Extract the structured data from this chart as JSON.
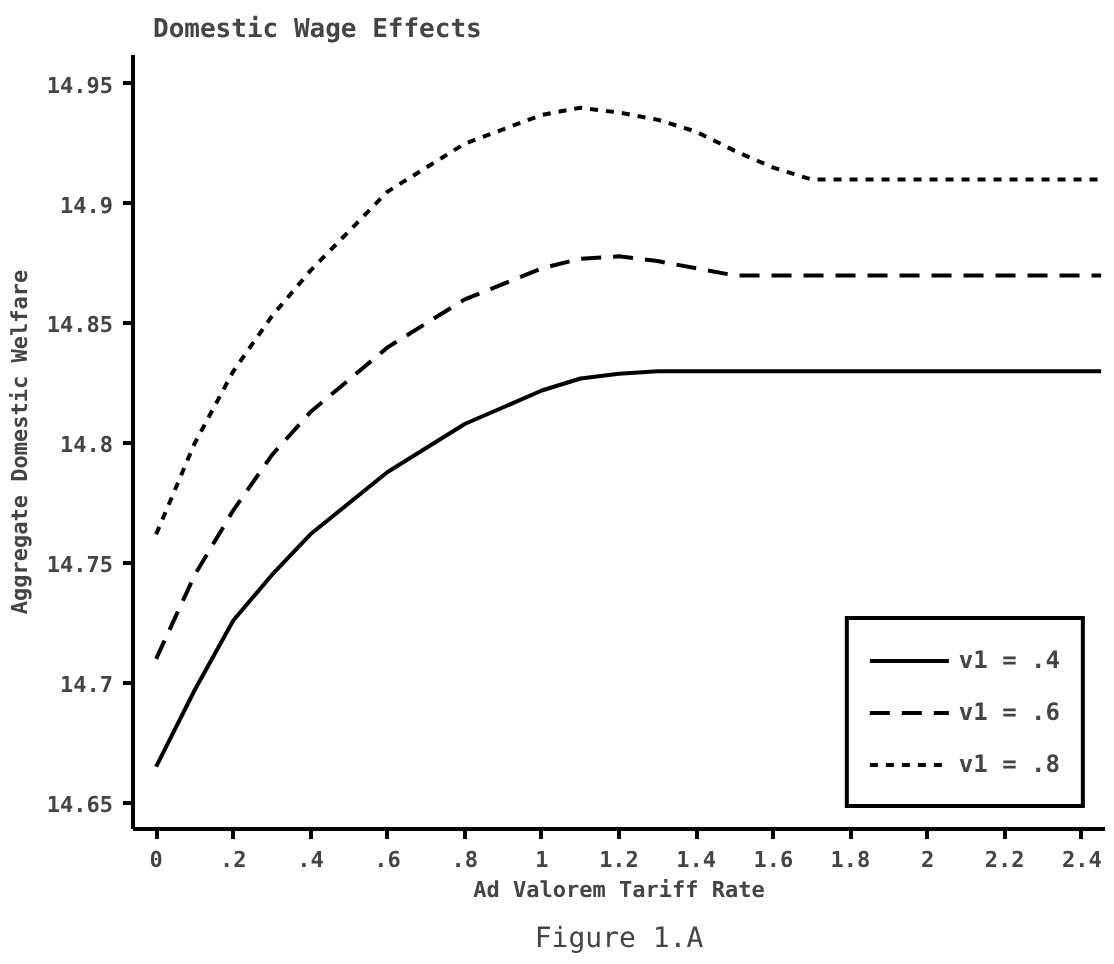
{
  "chart_data": {
    "type": "line",
    "title": "Domestic Wage Effects",
    "xlabel": "Ad Valorem Tariff Rate",
    "ylabel": "Aggregate Domestic Welfare",
    "annotations": [
      "Figure 1.A"
    ],
    "x": [
      0,
      0.1,
      0.2,
      0.3,
      0.4,
      0.6,
      0.8,
      1.0,
      1.1,
      1.2,
      1.3,
      1.4,
      1.5,
      1.6,
      1.7,
      2.45
    ],
    "series": [
      {
        "name": "v1 = .4",
        "color": "#000000",
        "line_style": "solid",
        "values": [
          14.665,
          14.697,
          14.726,
          14.745,
          14.762,
          14.788,
          14.808,
          14.822,
          14.827,
          14.829,
          14.83,
          14.83,
          14.83,
          14.83,
          14.83,
          14.83
        ]
      },
      {
        "name": "v1 = .6",
        "color": "#000000",
        "line_style": "dashed",
        "values": [
          14.71,
          14.745,
          14.772,
          14.795,
          14.813,
          14.84,
          14.86,
          14.873,
          14.877,
          14.878,
          14.876,
          14.873,
          14.87,
          14.87,
          14.87,
          14.87
        ]
      },
      {
        "name": "v1 = .8",
        "color": "#000000",
        "line_style": "dotted",
        "values": [
          14.762,
          14.8,
          14.83,
          14.853,
          14.872,
          14.905,
          14.925,
          14.937,
          14.94,
          14.938,
          14.935,
          14.93,
          14.922,
          14.915,
          14.91,
          14.91
        ]
      }
    ],
    "xlim": [
      -0.06,
      2.46
    ],
    "ylim": [
      14.639,
      14.962
    ],
    "xticks": [
      {
        "value": 0,
        "label": "0"
      },
      {
        "value": 0.2,
        "label": ".2"
      },
      {
        "value": 0.4,
        "label": ".4"
      },
      {
        "value": 0.6,
        "label": ".6"
      },
      {
        "value": 0.8,
        "label": ".8"
      },
      1,
      1.2,
      1.4,
      1.6,
      1.8,
      2,
      2.2,
      2.4
    ],
    "yticks": [
      14.65,
      14.7,
      14.75,
      14.8,
      14.85,
      14.9,
      14.95
    ],
    "grid": false,
    "legend": "bottom right",
    "marker": "none"
  }
}
